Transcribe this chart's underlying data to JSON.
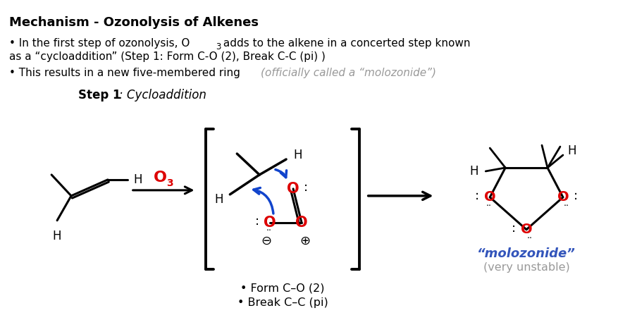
{
  "bg_color": "#ffffff",
  "title": "Mechanism - Ozonolysis of Alkenes",
  "b1_part1": "• In the first step of ozonolysis, O",
  "b1_sub": "3",
  "b1_part2": " adds to the alkene in a concerted step known",
  "b1_line2": "as a “cycloaddition” (Step 1: Form C-O (2), Break C-C (pi) )",
  "b2_plain": "• This results in a new five-membered ring ",
  "b2_italic": "(officially called a “molozonide”)",
  "step_bold": "Step 1",
  "step_italic": ": Cycloaddition",
  "form_co": "• Form C–O (2)",
  "break_cc": "• Break C–C (pi)",
  "molozonide_label": "“molozonide”",
  "very_unstable": "(very unstable)",
  "red": "#dd0000",
  "blue": "#1144cc",
  "gray": "#999999",
  "black": "#000000",
  "molozonide_color": "#3355bb"
}
